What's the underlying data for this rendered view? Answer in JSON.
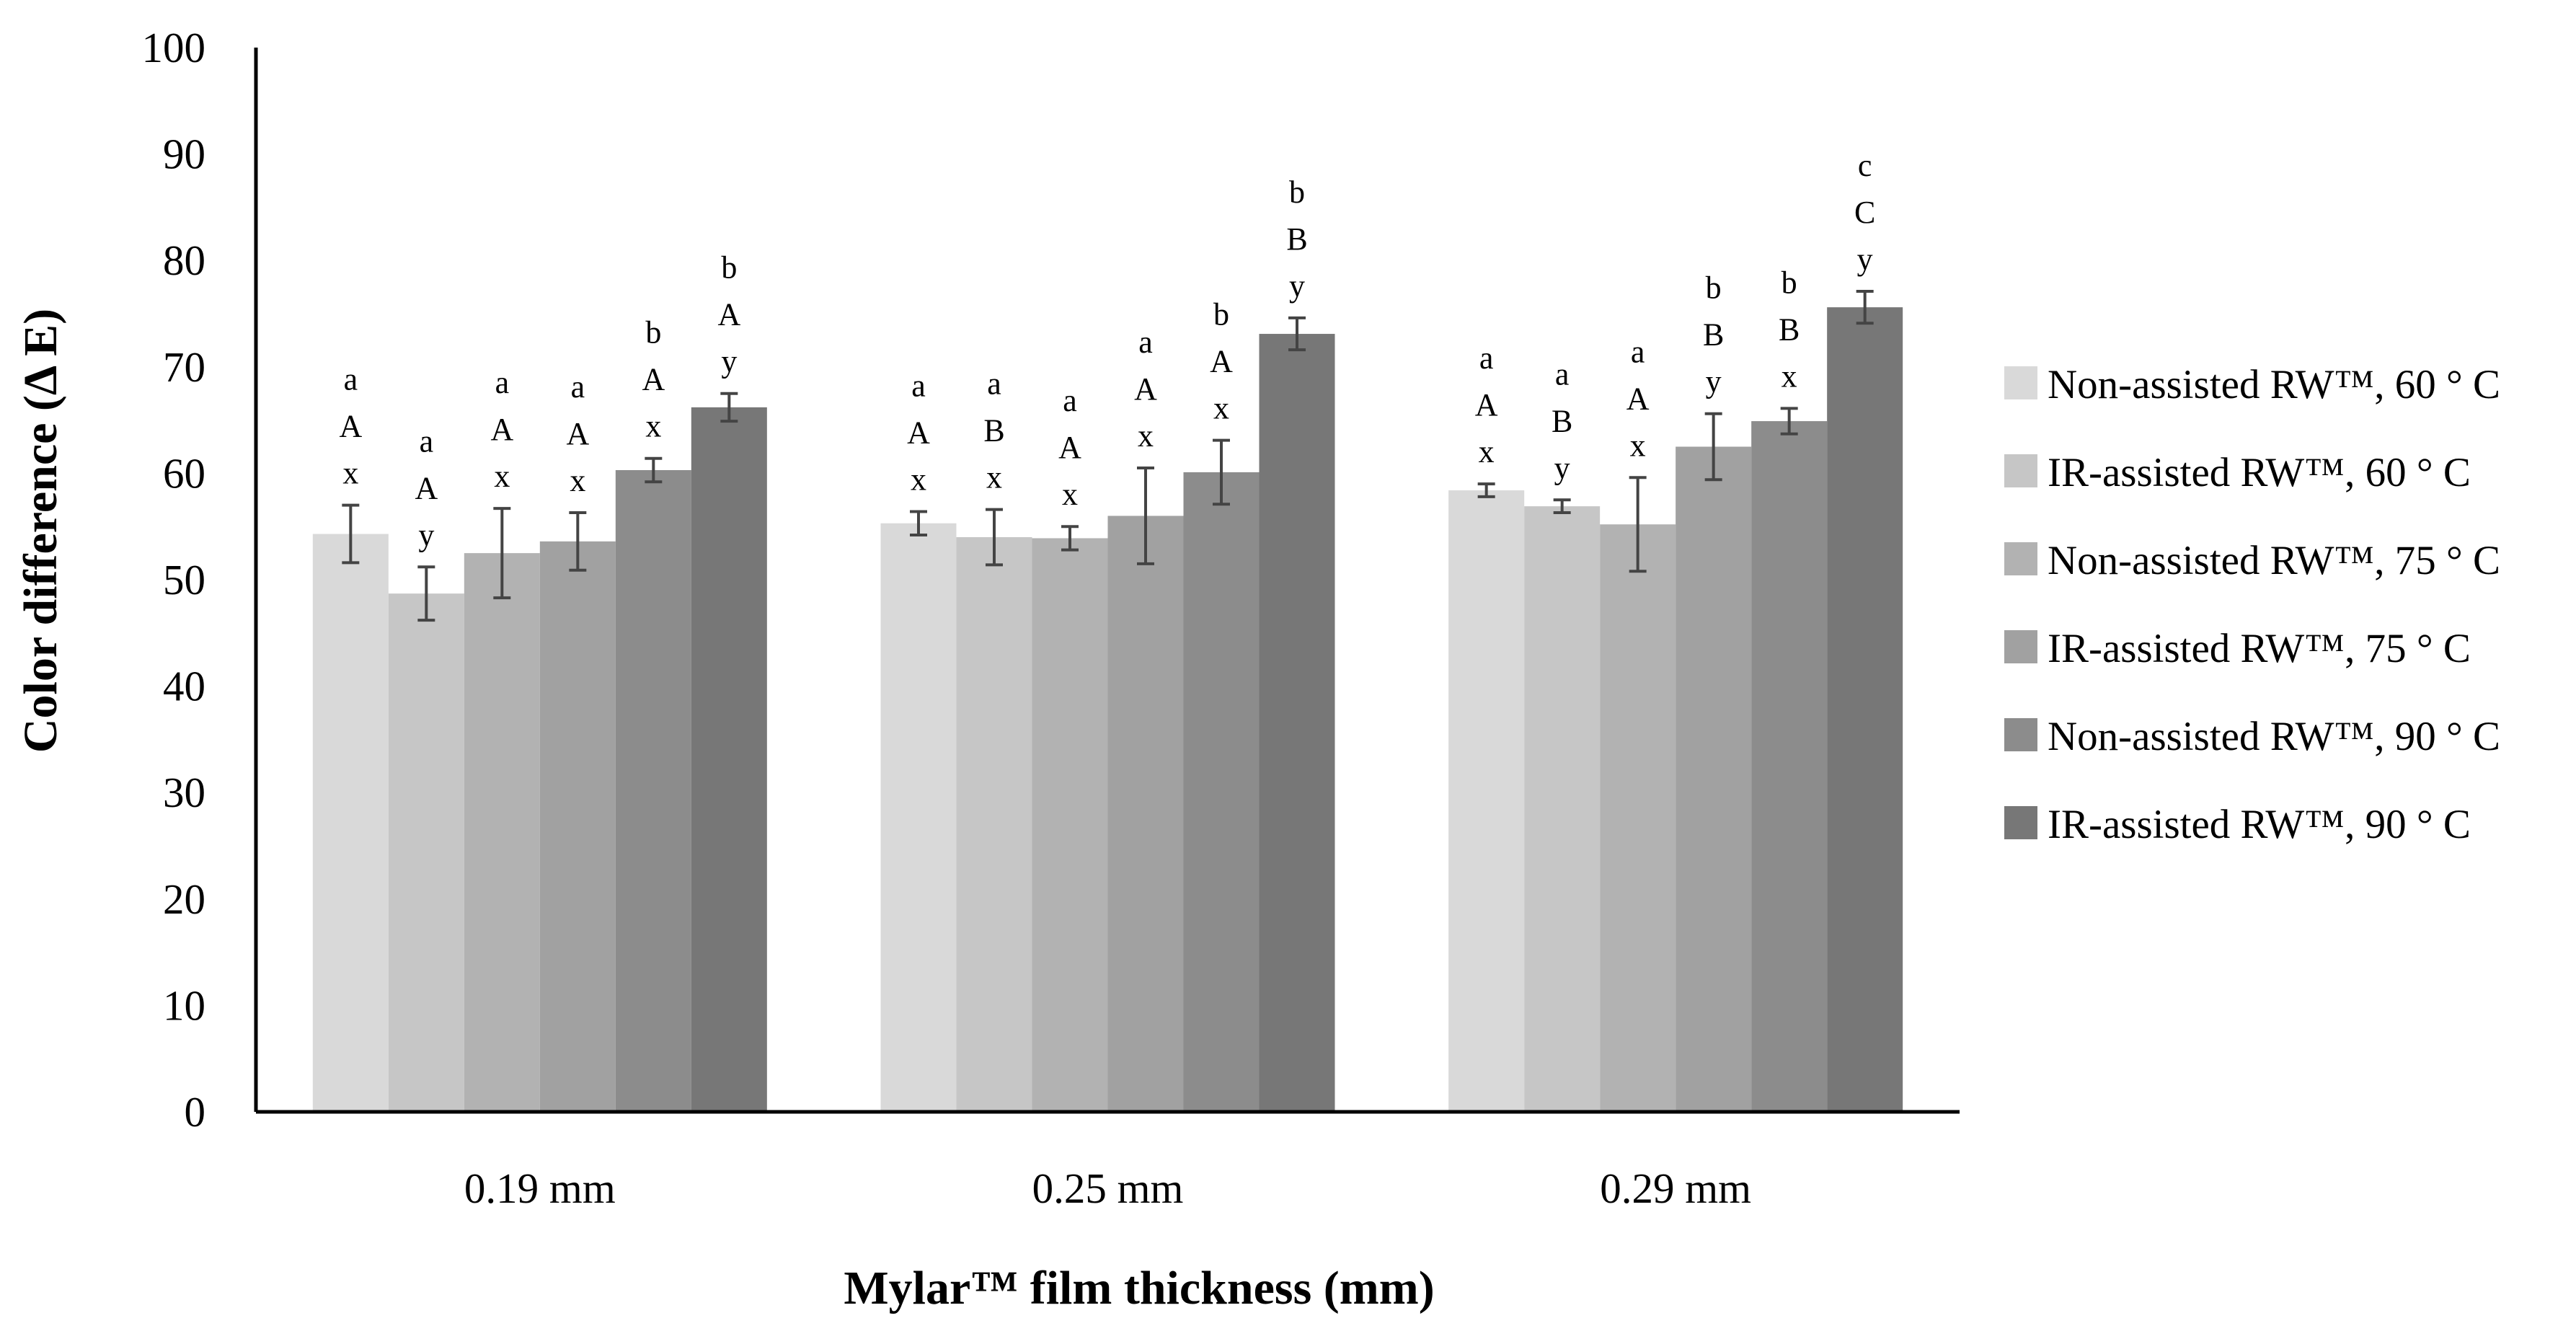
{
  "chart_data": {
    "type": "bar",
    "title": "",
    "xlabel": "Mylar™ film thickness (mm)",
    "ylabel": "Color difference (Δ E)",
    "ylim": [
      0,
      100
    ],
    "yticks": [
      0,
      10,
      20,
      30,
      40,
      50,
      60,
      70,
      80,
      90,
      100
    ],
    "grid": false,
    "legend_position": "right",
    "categories": [
      "0.19 mm",
      "0.25 mm",
      "0.29 mm"
    ],
    "series": [
      {
        "name": "Non-assisted RW™, 60 ° C",
        "color": "#d9d9d9",
        "values": [
          54.3,
          55.3,
          58.4
        ],
        "errors": [
          2.7,
          1.1,
          0.6
        ],
        "letters": [
          [
            "a",
            "A",
            "x"
          ],
          [
            "a",
            "A",
            "x"
          ],
          [
            "a",
            "A",
            "x"
          ]
        ]
      },
      {
        "name": "IR-assisted RW™, 60 ° C",
        "color": "#c6c6c6",
        "values": [
          48.7,
          54.0,
          56.9
        ],
        "errors": [
          2.5,
          2.6,
          0.6
        ],
        "letters": [
          [
            "a",
            "A",
            "y"
          ],
          [
            "a",
            "B",
            "x"
          ],
          [
            "a",
            "B",
            "y"
          ]
        ]
      },
      {
        "name": "Non-assisted RW™, 75 ° C",
        "color": "#b2b2b2",
        "values": [
          52.5,
          53.9,
          55.2
        ],
        "errors": [
          4.2,
          1.1,
          4.4
        ],
        "letters": [
          [
            "a",
            "A",
            "x"
          ],
          [
            "a",
            "A",
            "x"
          ],
          [
            "a",
            "A",
            "x"
          ]
        ]
      },
      {
        "name": "IR-assisted RW™, 75 ° C",
        "color": "#a1a1a1",
        "values": [
          53.6,
          56.0,
          62.5
        ],
        "errors": [
          2.7,
          4.5,
          3.1
        ],
        "letters": [
          [
            "a",
            "A",
            "x"
          ],
          [
            "a",
            "A",
            "x"
          ],
          [
            "b",
            "B",
            "y"
          ]
        ]
      },
      {
        "name": "Non-assisted RW™, 90 ° C",
        "color": "#8c8c8c",
        "values": [
          60.3,
          60.1,
          64.9
        ],
        "errors": [
          1.1,
          3.0,
          1.2
        ],
        "letters": [
          [
            "b",
            "A",
            "x"
          ],
          [
            "b",
            "A",
            "x"
          ],
          [
            "b",
            "B",
            "x"
          ]
        ]
      },
      {
        "name": "IR-assisted RW™, 90 ° C",
        "color": "#777777",
        "values": [
          66.2,
          73.1,
          75.6
        ],
        "errors": [
          1.3,
          1.5,
          1.5
        ],
        "letters": [
          [
            "b",
            "A",
            "y"
          ],
          [
            "b",
            "B",
            "y"
          ],
          [
            "c",
            "C",
            "y"
          ]
        ]
      }
    ]
  }
}
